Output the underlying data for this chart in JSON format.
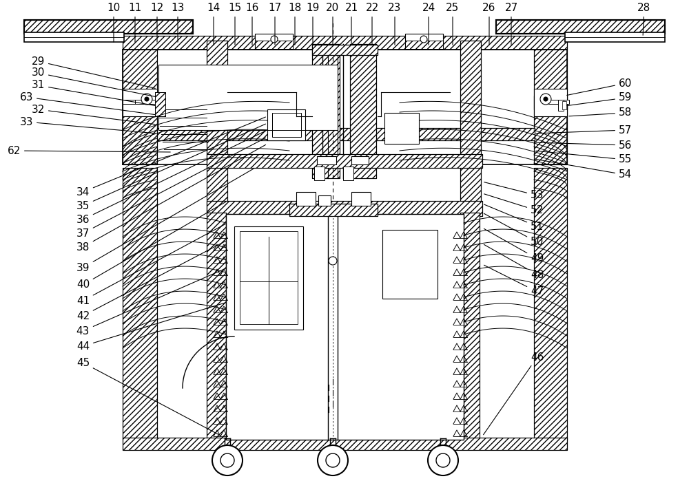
{
  "bg_color": "#ffffff",
  "lc": "#000000",
  "figsize": [
    10.0,
    6.99
  ],
  "dpi": 100,
  "fs": 11
}
